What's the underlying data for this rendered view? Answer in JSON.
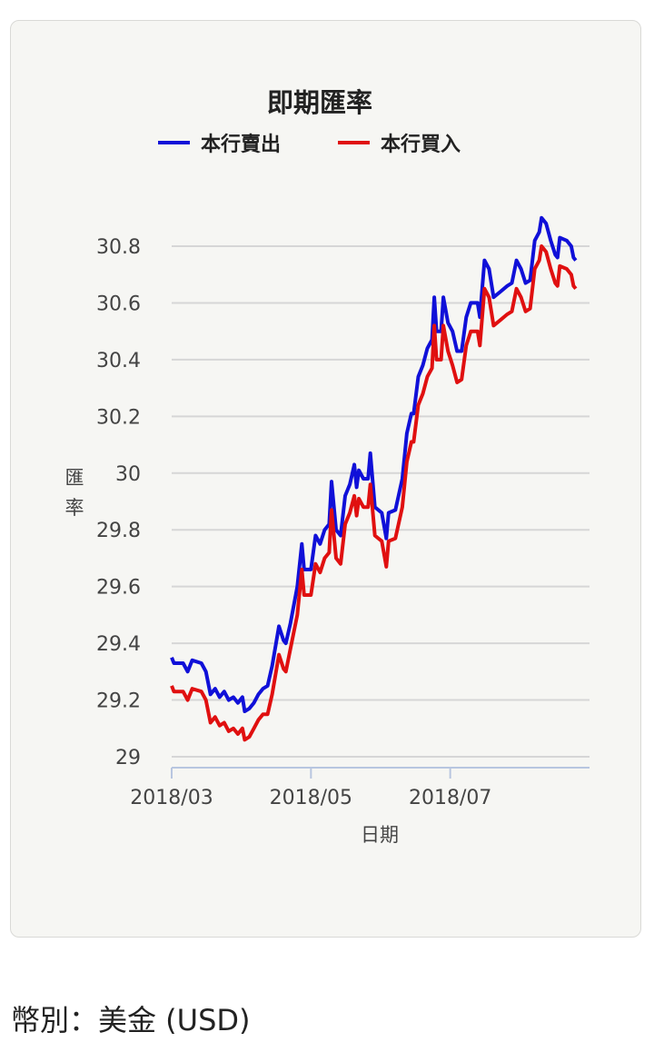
{
  "chart_data": {
    "type": "line",
    "title": "即期匯率",
    "xlabel": "日期",
    "ylabel": "匯率",
    "ylim": [
      29,
      30.9
    ],
    "yticks": [
      "29",
      "29.2",
      "29.4",
      "29.6",
      "29.8",
      "30",
      "30.2",
      "30.4",
      "30.6",
      "30.8"
    ],
    "xticks": [
      "2018/03",
      "2018/05",
      "2018/07"
    ],
    "x_range": [
      "2018-03-01",
      "2018-08-31"
    ],
    "grid": true,
    "legend_position": "top",
    "series": [
      {
        "name": "本行賣出",
        "color": "#1010d8",
        "points": [
          [
            "2018-03-01",
            29.35
          ],
          [
            "2018-03-02",
            29.33
          ],
          [
            "2018-03-06",
            29.33
          ],
          [
            "2018-03-08",
            29.3
          ],
          [
            "2018-03-10",
            29.34
          ],
          [
            "2018-03-14",
            29.33
          ],
          [
            "2018-03-16",
            29.3
          ],
          [
            "2018-03-18",
            29.22
          ],
          [
            "2018-03-20",
            29.24
          ],
          [
            "2018-03-22",
            29.21
          ],
          [
            "2018-03-24",
            29.23
          ],
          [
            "2018-03-26",
            29.2
          ],
          [
            "2018-03-28",
            29.21
          ],
          [
            "2018-03-30",
            29.19
          ],
          [
            "2018-04-01",
            29.21
          ],
          [
            "2018-04-02",
            29.16
          ],
          [
            "2018-04-04",
            29.17
          ],
          [
            "2018-04-06",
            29.19
          ],
          [
            "2018-04-08",
            29.22
          ],
          [
            "2018-04-10",
            29.24
          ],
          [
            "2018-04-12",
            29.25
          ],
          [
            "2018-04-14",
            29.32
          ],
          [
            "2018-04-17",
            29.46
          ],
          [
            "2018-04-19",
            29.41
          ],
          [
            "2018-04-20",
            29.4
          ],
          [
            "2018-04-22",
            29.47
          ],
          [
            "2018-04-25",
            29.6
          ],
          [
            "2018-04-27",
            29.75
          ],
          [
            "2018-04-28",
            29.66
          ],
          [
            "2018-05-01",
            29.66
          ],
          [
            "2018-05-03",
            29.78
          ],
          [
            "2018-05-05",
            29.75
          ],
          [
            "2018-05-07",
            29.8
          ],
          [
            "2018-05-09",
            29.82
          ],
          [
            "2018-05-10",
            29.97
          ],
          [
            "2018-05-12",
            29.8
          ],
          [
            "2018-05-14",
            29.78
          ],
          [
            "2018-05-16",
            29.92
          ],
          [
            "2018-05-18",
            29.96
          ],
          [
            "2018-05-20",
            30.03
          ],
          [
            "2018-05-21",
            29.95
          ],
          [
            "2018-05-22",
            30.01
          ],
          [
            "2018-05-24",
            29.98
          ],
          [
            "2018-05-26",
            29.98
          ],
          [
            "2018-05-27",
            30.07
          ],
          [
            "2018-05-29",
            29.88
          ],
          [
            "2018-06-01",
            29.86
          ],
          [
            "2018-06-03",
            29.77
          ],
          [
            "2018-06-04",
            29.86
          ],
          [
            "2018-06-07",
            29.87
          ],
          [
            "2018-06-10",
            29.98
          ],
          [
            "2018-06-12",
            30.14
          ],
          [
            "2018-06-14",
            30.21
          ],
          [
            "2018-06-15",
            30.21
          ],
          [
            "2018-06-17",
            30.34
          ],
          [
            "2018-06-19",
            30.38
          ],
          [
            "2018-06-21",
            30.44
          ],
          [
            "2018-06-23",
            30.47
          ],
          [
            "2018-06-24",
            30.62
          ],
          [
            "2018-06-25",
            30.5
          ],
          [
            "2018-06-27",
            30.5
          ],
          [
            "2018-06-28",
            30.62
          ],
          [
            "2018-06-30",
            30.53
          ],
          [
            "2018-07-02",
            30.5
          ],
          [
            "2018-07-04",
            30.43
          ],
          [
            "2018-07-06",
            30.43
          ],
          [
            "2018-07-08",
            30.55
          ],
          [
            "2018-07-10",
            30.6
          ],
          [
            "2018-07-13",
            30.6
          ],
          [
            "2018-07-14",
            30.55
          ],
          [
            "2018-07-16",
            30.75
          ],
          [
            "2018-07-18",
            30.72
          ],
          [
            "2018-07-20",
            30.62
          ],
          [
            "2018-07-23",
            30.64
          ],
          [
            "2018-07-26",
            30.66
          ],
          [
            "2018-07-28",
            30.67
          ],
          [
            "2018-07-30",
            30.75
          ],
          [
            "2018-08-01",
            30.72
          ],
          [
            "2018-08-03",
            30.67
          ],
          [
            "2018-08-05",
            30.68
          ],
          [
            "2018-08-07",
            30.82
          ],
          [
            "2018-08-09",
            30.85
          ],
          [
            "2018-08-10",
            30.9
          ],
          [
            "2018-08-12",
            30.88
          ],
          [
            "2018-08-14",
            30.82
          ],
          [
            "2018-08-16",
            30.77
          ],
          [
            "2018-08-17",
            30.76
          ],
          [
            "2018-08-18",
            30.83
          ],
          [
            "2018-08-21",
            30.82
          ],
          [
            "2018-08-23",
            30.8
          ],
          [
            "2018-08-24",
            30.76
          ],
          [
            "2018-08-25",
            30.75
          ]
        ]
      },
      {
        "name": "本行買入",
        "color": "#e01010",
        "points": [
          [
            "2018-03-01",
            29.25
          ],
          [
            "2018-03-02",
            29.23
          ],
          [
            "2018-03-06",
            29.23
          ],
          [
            "2018-03-08",
            29.2
          ],
          [
            "2018-03-10",
            29.24
          ],
          [
            "2018-03-14",
            29.23
          ],
          [
            "2018-03-16",
            29.2
          ],
          [
            "2018-03-18",
            29.12
          ],
          [
            "2018-03-20",
            29.14
          ],
          [
            "2018-03-22",
            29.11
          ],
          [
            "2018-03-24",
            29.12
          ],
          [
            "2018-03-26",
            29.09
          ],
          [
            "2018-03-28",
            29.1
          ],
          [
            "2018-03-30",
            29.08
          ],
          [
            "2018-04-01",
            29.1
          ],
          [
            "2018-04-02",
            29.06
          ],
          [
            "2018-04-04",
            29.07
          ],
          [
            "2018-04-06",
            29.1
          ],
          [
            "2018-04-08",
            29.13
          ],
          [
            "2018-04-10",
            29.15
          ],
          [
            "2018-04-12",
            29.15
          ],
          [
            "2018-04-14",
            29.22
          ],
          [
            "2018-04-17",
            29.36
          ],
          [
            "2018-04-19",
            29.31
          ],
          [
            "2018-04-20",
            29.3
          ],
          [
            "2018-04-22",
            29.38
          ],
          [
            "2018-04-25",
            29.5
          ],
          [
            "2018-04-27",
            29.66
          ],
          [
            "2018-04-28",
            29.57
          ],
          [
            "2018-05-01",
            29.57
          ],
          [
            "2018-05-03",
            29.68
          ],
          [
            "2018-05-05",
            29.65
          ],
          [
            "2018-05-07",
            29.7
          ],
          [
            "2018-05-09",
            29.72
          ],
          [
            "2018-05-10",
            29.87
          ],
          [
            "2018-05-12",
            29.7
          ],
          [
            "2018-05-14",
            29.68
          ],
          [
            "2018-05-16",
            29.82
          ],
          [
            "2018-05-18",
            29.86
          ],
          [
            "2018-05-20",
            29.92
          ],
          [
            "2018-05-21",
            29.85
          ],
          [
            "2018-05-22",
            29.91
          ],
          [
            "2018-05-24",
            29.88
          ],
          [
            "2018-05-26",
            29.88
          ],
          [
            "2018-05-27",
            29.96
          ],
          [
            "2018-05-29",
            29.78
          ],
          [
            "2018-06-01",
            29.76
          ],
          [
            "2018-06-03",
            29.67
          ],
          [
            "2018-06-04",
            29.76
          ],
          [
            "2018-06-07",
            29.77
          ],
          [
            "2018-06-10",
            29.88
          ],
          [
            "2018-06-12",
            30.04
          ],
          [
            "2018-06-14",
            30.11
          ],
          [
            "2018-06-15",
            30.11
          ],
          [
            "2018-06-17",
            30.24
          ],
          [
            "2018-06-19",
            30.28
          ],
          [
            "2018-06-21",
            30.34
          ],
          [
            "2018-06-23",
            30.37
          ],
          [
            "2018-06-24",
            30.52
          ],
          [
            "2018-06-25",
            30.4
          ],
          [
            "2018-06-27",
            30.4
          ],
          [
            "2018-06-28",
            30.52
          ],
          [
            "2018-06-30",
            30.43
          ],
          [
            "2018-07-02",
            30.38
          ],
          [
            "2018-07-04",
            30.32
          ],
          [
            "2018-07-06",
            30.33
          ],
          [
            "2018-07-08",
            30.45
          ],
          [
            "2018-07-10",
            30.5
          ],
          [
            "2018-07-13",
            30.5
          ],
          [
            "2018-07-14",
            30.45
          ],
          [
            "2018-07-16",
            30.65
          ],
          [
            "2018-07-18",
            30.62
          ],
          [
            "2018-07-20",
            30.52
          ],
          [
            "2018-07-23",
            30.54
          ],
          [
            "2018-07-26",
            30.56
          ],
          [
            "2018-07-28",
            30.57
          ],
          [
            "2018-07-30",
            30.65
          ],
          [
            "2018-08-01",
            30.62
          ],
          [
            "2018-08-03",
            30.57
          ],
          [
            "2018-08-05",
            30.58
          ],
          [
            "2018-08-07",
            30.72
          ],
          [
            "2018-08-09",
            30.75
          ],
          [
            "2018-08-10",
            30.8
          ],
          [
            "2018-08-12",
            30.78
          ],
          [
            "2018-08-14",
            30.72
          ],
          [
            "2018-08-16",
            30.67
          ],
          [
            "2018-08-17",
            30.66
          ],
          [
            "2018-08-18",
            30.73
          ],
          [
            "2018-08-21",
            30.72
          ],
          [
            "2018-08-23",
            30.7
          ],
          [
            "2018-08-24",
            30.66
          ],
          [
            "2018-08-25",
            30.65
          ]
        ]
      }
    ]
  },
  "footer": {
    "currency_text": "幣別：美金 (USD)"
  }
}
